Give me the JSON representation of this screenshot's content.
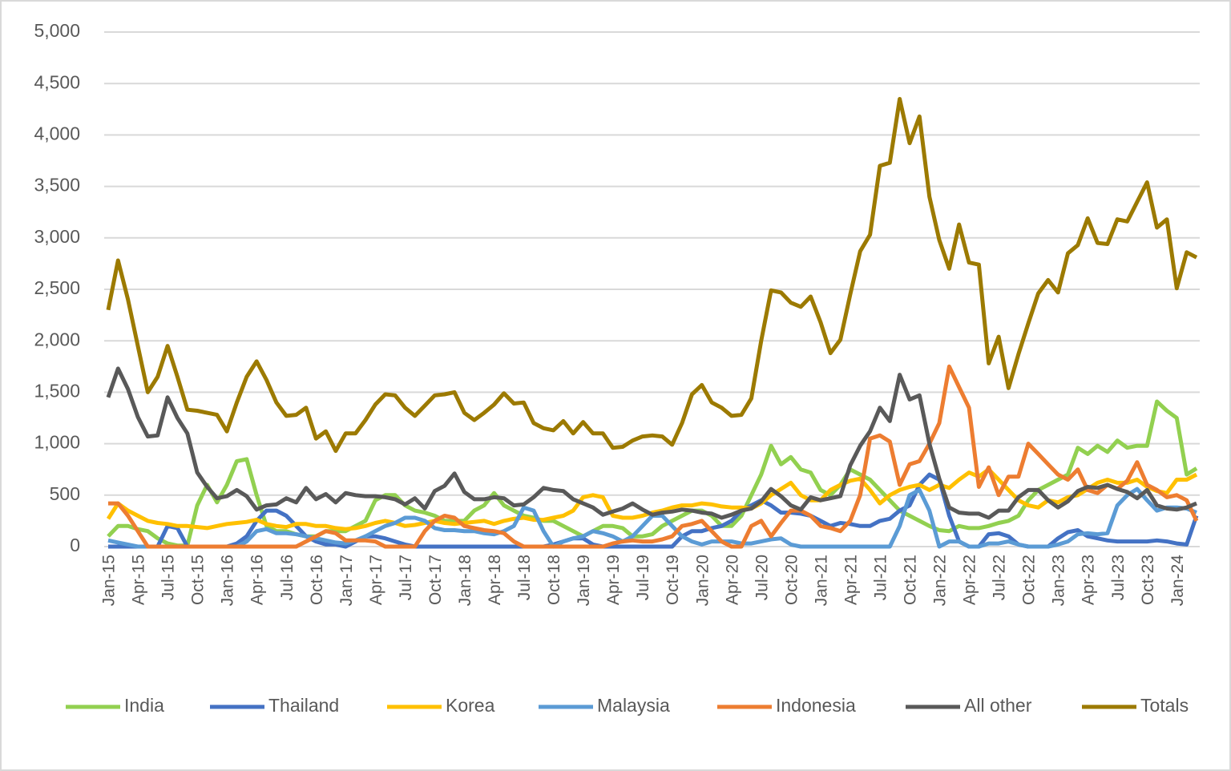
{
  "chart_data": {
    "type": "line",
    "categories": [
      "Jan-15",
      null,
      null,
      "Apr-15",
      null,
      null,
      "Jul-15",
      null,
      null,
      "Oct-15",
      null,
      null,
      "Jan-16",
      null,
      null,
      "Apr-16",
      null,
      null,
      "Jul-16",
      null,
      null,
      "Oct-16",
      null,
      null,
      "Jan-17",
      null,
      null,
      "Apr-17",
      null,
      null,
      "Jul-17",
      null,
      null,
      "Oct-17",
      null,
      null,
      "Jan-18",
      null,
      null,
      "Apr-18",
      null,
      null,
      "Jul-18",
      null,
      null,
      "Oct-18",
      null,
      null,
      "Jan-19",
      null,
      null,
      "Apr-19",
      null,
      null,
      "Jul-19",
      null,
      null,
      "Oct-19",
      null,
      null,
      "Jan-20",
      null,
      null,
      "Apr-20",
      null,
      null,
      "Jul-20",
      null,
      null,
      "Oct-20",
      null,
      null,
      "Jan-21",
      null,
      null,
      "Apr-21",
      null,
      null,
      "Jul-21",
      null,
      null,
      "Oct-21",
      null,
      null,
      "Jan-22",
      null,
      null,
      "Apr-22",
      null,
      null,
      "Jul-22",
      null,
      null,
      "Oct-22",
      null,
      null,
      "Jan-23",
      null,
      null,
      "Apr-23",
      null,
      null,
      "Jul-23",
      null,
      null,
      "Oct-23",
      null,
      null,
      "Jan-24",
      null,
      null
    ],
    "series": [
      {
        "name": "India",
        "color": "#92d050",
        "values": [
          100,
          200,
          200,
          170,
          150,
          80,
          30,
          10,
          10,
          400,
          600,
          430,
          600,
          830,
          850,
          500,
          200,
          150,
          150,
          120,
          100,
          100,
          150,
          150,
          150,
          200,
          250,
          450,
          500,
          500,
          400,
          350,
          330,
          300,
          250,
          250,
          250,
          350,
          400,
          520,
          400,
          350,
          300,
          280,
          250,
          250,
          200,
          150,
          100,
          150,
          200,
          200,
          180,
          100,
          100,
          120,
          200,
          250,
          300,
          350,
          350,
          300,
          200,
          200,
          300,
          500,
          700,
          980,
          800,
          870,
          750,
          720,
          550,
          500,
          600,
          750,
          700,
          650,
          550,
          450,
          350,
          300,
          250,
          200,
          160,
          150,
          200,
          180,
          180,
          200,
          230,
          250,
          300,
          450,
          550,
          600,
          650,
          700,
          960,
          900,
          980,
          920,
          1030,
          960,
          980,
          980,
          1410,
          1320,
          1250,
          700,
          760
        ]
      },
      {
        "name": "Thailand",
        "color": "#4472c4",
        "values": [
          0,
          0,
          0,
          0,
          0,
          0,
          200,
          180,
          0,
          0,
          0,
          0,
          0,
          30,
          100,
          250,
          350,
          350,
          300,
          200,
          100,
          50,
          20,
          20,
          0,
          50,
          100,
          100,
          80,
          50,
          20,
          0,
          0,
          0,
          0,
          0,
          0,
          0,
          0,
          0,
          0,
          0,
          0,
          0,
          0,
          20,
          50,
          80,
          80,
          20,
          0,
          0,
          0,
          0,
          0,
          0,
          0,
          0,
          100,
          150,
          150,
          180,
          200,
          250,
          350,
          400,
          450,
          400,
          330,
          330,
          320,
          300,
          250,
          200,
          230,
          220,
          200,
          200,
          250,
          270,
          350,
          400,
          600,
          700,
          650,
          300,
          50,
          0,
          0,
          120,
          130,
          100,
          20,
          0,
          0,
          0,
          80,
          140,
          160,
          100,
          80,
          60,
          50,
          50,
          50,
          50,
          60,
          50,
          30,
          20,
          300
        ]
      },
      {
        "name": "Korea",
        "color": "#ffc000",
        "values": [
          270,
          420,
          350,
          300,
          250,
          230,
          220,
          200,
          200,
          190,
          180,
          200,
          220,
          230,
          240,
          260,
          220,
          200,
          190,
          220,
          220,
          200,
          200,
          180,
          170,
          180,
          200,
          230,
          250,
          230,
          200,
          210,
          230,
          250,
          230,
          220,
          230,
          240,
          250,
          220,
          250,
          270,
          280,
          260,
          260,
          280,
          300,
          350,
          480,
          500,
          480,
          300,
          280,
          280,
          300,
          330,
          350,
          380,
          400,
          400,
          420,
          410,
          390,
          380,
          380,
          370,
          420,
          500,
          560,
          620,
          500,
          450,
          450,
          550,
          600,
          640,
          660,
          550,
          420,
          500,
          550,
          580,
          600,
          550,
          600,
          570,
          650,
          720,
          680,
          750,
          650,
          550,
          450,
          400,
          380,
          450,
          430,
          480,
          500,
          560,
          620,
          650,
          620,
          620,
          650,
          580,
          540,
          520,
          650,
          650,
          700
        ]
      },
      {
        "name": "Malaysia",
        "color": "#5b9bd5",
        "values": [
          60,
          40,
          20,
          0,
          0,
          0,
          0,
          0,
          0,
          0,
          0,
          0,
          0,
          0,
          50,
          150,
          170,
          130,
          130,
          120,
          100,
          80,
          60,
          40,
          30,
          60,
          100,
          150,
          200,
          230,
          280,
          280,
          250,
          180,
          160,
          160,
          150,
          150,
          130,
          120,
          150,
          200,
          380,
          350,
          150,
          0,
          50,
          80,
          100,
          150,
          130,
          100,
          50,
          100,
          200,
          300,
          300,
          200,
          100,
          50,
          20,
          50,
          50,
          50,
          30,
          30,
          50,
          70,
          80,
          20,
          0,
          0,
          0,
          0,
          0,
          0,
          0,
          0,
          0,
          0,
          200,
          500,
          550,
          350,
          0,
          50,
          50,
          0,
          0,
          30,
          30,
          50,
          20,
          0,
          0,
          0,
          20,
          50,
          120,
          130,
          120,
          130,
          400,
          500,
          560,
          450,
          350,
          380,
          380,
          370,
          330
        ]
      },
      {
        "name": "Indonesia",
        "color": "#ed7d31",
        "values": [
          420,
          420,
          300,
          150,
          0,
          0,
          0,
          0,
          0,
          0,
          0,
          0,
          0,
          0,
          0,
          0,
          0,
          0,
          0,
          0,
          50,
          100,
          150,
          130,
          60,
          60,
          60,
          50,
          0,
          0,
          0,
          0,
          150,
          250,
          300,
          280,
          200,
          180,
          160,
          150,
          130,
          50,
          0,
          0,
          0,
          0,
          0,
          0,
          0,
          0,
          0,
          30,
          50,
          60,
          50,
          50,
          70,
          100,
          200,
          220,
          250,
          150,
          50,
          0,
          0,
          200,
          250,
          100,
          230,
          350,
          350,
          300,
          200,
          180,
          150,
          250,
          500,
          1050,
          1080,
          1020,
          600,
          800,
          830,
          1000,
          1200,
          1750,
          1550,
          1350,
          580,
          770,
          500,
          680,
          680,
          1000,
          900,
          800,
          700,
          650,
          750,
          550,
          520,
          600,
          560,
          640,
          820,
          600,
          550,
          480,
          500,
          450,
          250
        ]
      },
      {
        "name": "All other",
        "color": "#595959",
        "values": [
          1450,
          1730,
          1530,
          1260,
          1070,
          1080,
          1450,
          1250,
          1100,
          720,
          580,
          470,
          490,
          550,
          490,
          360,
          400,
          410,
          470,
          430,
          570,
          460,
          510,
          430,
          520,
          500,
          490,
          490,
          480,
          460,
          410,
          470,
          370,
          540,
          590,
          710,
          530,
          460,
          460,
          480,
          470,
          400,
          410,
          480,
          570,
          550,
          540,
          460,
          420,
          380,
          310,
          340,
          370,
          420,
          360,
          310,
          330,
          340,
          360,
          350,
          330,
          320,
          280,
          310,
          350,
          370,
          440,
          560,
          490,
          400,
          360,
          480,
          450,
          470,
          490,
          790,
          980,
          1120,
          1350,
          1220,
          1670,
          1430,
          1470,
          1000,
          660,
          380,
          330,
          320,
          320,
          280,
          350,
          350,
          480,
          550,
          550,
          450,
          380,
          440,
          540,
          580,
          570,
          600,
          560,
          530,
          470,
          550,
          400,
          370,
          360,
          380,
          420
        ]
      },
      {
        "name": "Totals",
        "color": "#9c7a00",
        "values": [
          2300,
          2780,
          2400,
          1950,
          1500,
          1650,
          1950,
          1650,
          1330,
          1320,
          1300,
          1280,
          1120,
          1400,
          1650,
          1800,
          1620,
          1400,
          1270,
          1280,
          1350,
          1050,
          1120,
          930,
          1100,
          1100,
          1230,
          1380,
          1480,
          1470,
          1350,
          1270,
          1370,
          1470,
          1480,
          1500,
          1300,
          1230,
          1300,
          1380,
          1490,
          1390,
          1400,
          1200,
          1150,
          1130,
          1220,
          1100,
          1210,
          1100,
          1100,
          960,
          970,
          1030,
          1070,
          1080,
          1070,
          990,
          1200,
          1480,
          1570,
          1400,
          1350,
          1270,
          1280,
          1440,
          2000,
          2490,
          2470,
          2370,
          2330,
          2430,
          2180,
          1880,
          2010,
          2450,
          2870,
          3030,
          3700,
          3730,
          4350,
          3920,
          4180,
          3400,
          2980,
          2700,
          3130,
          2760,
          2740,
          1780,
          2040,
          1540,
          1870,
          2170,
          2460,
          2590,
          2470,
          2850,
          2930,
          3190,
          2950,
          2940,
          3180,
          3160,
          3350,
          3540,
          3100,
          3180,
          2510,
          2860,
          2810
        ]
      }
    ],
    "ylim": [
      0,
      5000
    ],
    "yticks": [
      0,
      500,
      {
        "value": 1000,
        "label": "1,000"
      },
      {
        "value": 1500,
        "label": "1,500"
      },
      {
        "value": 2000,
        "label": "2,000"
      },
      {
        "value": 2500,
        "label": "2,500"
      },
      {
        "value": 3000,
        "label": "3,000"
      },
      {
        "value": 3500,
        "label": "3,500"
      },
      {
        "value": 4000,
        "label": "4,000"
      },
      {
        "value": 4500,
        "label": "4,500"
      },
      {
        "value": 5000,
        "label": "5,000"
      }
    ],
    "grid": true,
    "legend": "bottom"
  }
}
